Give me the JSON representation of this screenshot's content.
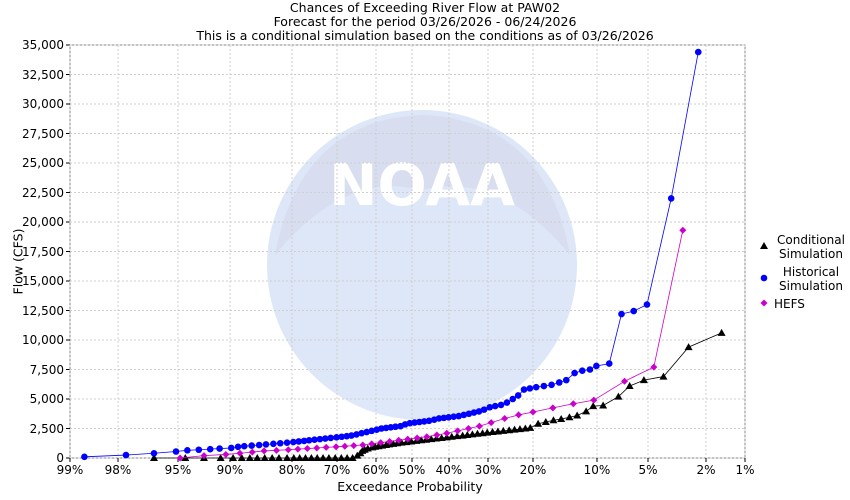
{
  "chart_data": {
    "type": "scatter",
    "title": "Chances of Exceeding River Flow at PAW02",
    "subtitle1": "Forecast for the period 03/26/2026 - 06/24/2026",
    "subtitle2": "This is a conditional simulation based on the conditions as of 03/26/2026",
    "xlabel": "Exceedance Probability",
    "ylabel": "Flow (CFS)",
    "xscale": "normal-probability",
    "xlim": [
      99,
      1
    ],
    "ylim": [
      0,
      35000
    ],
    "yticks": [
      0,
      2500,
      5000,
      7500,
      10000,
      12500,
      15000,
      17500,
      20000,
      22500,
      25000,
      27500,
      30000,
      32500,
      35000
    ],
    "ytick_labels": [
      "0",
      "2,500",
      "5,000",
      "7,500",
      "10,000",
      "12,500",
      "15,000",
      "17,500",
      "20,000",
      "22,500",
      "25,000",
      "27,500",
      "30,000",
      "32,500",
      "35,000"
    ],
    "xticks": [
      99,
      98,
      95,
      90,
      80,
      70,
      60,
      50,
      40,
      30,
      20,
      10,
      5,
      2,
      1
    ],
    "xtick_labels": [
      "99%",
      "98%",
      "95%",
      "90%",
      "80%",
      "70%",
      "60%",
      "50%",
      "40%",
      "30%",
      "20%",
      "10%",
      "5%",
      "2%",
      "1%"
    ],
    "legend": [
      "Conditional Simulation",
      "Historical Simulation",
      "HEFS"
    ],
    "watermark": "NOAA - National Oceanic and Atmospheric Administration - U.S. Department of Commerce",
    "series": [
      {
        "name": "Conditional Simulation",
        "color": "#000000",
        "marker": "triangle",
        "points": [
          [
            96.2,
            0
          ],
          [
            94.3,
            0
          ],
          [
            92.5,
            0
          ],
          [
            90.9,
            0
          ],
          [
            89.5,
            0
          ],
          [
            88.1,
            0
          ],
          [
            86.8,
            0
          ],
          [
            85.6,
            0
          ],
          [
            84.4,
            0
          ],
          [
            83.2,
            0
          ],
          [
            82.1,
            0
          ],
          [
            80.8,
            0
          ],
          [
            79.6,
            0
          ],
          [
            78.3,
            0
          ],
          [
            77.0,
            0
          ],
          [
            75.7,
            0
          ],
          [
            74.4,
            0
          ],
          [
            73.1,
            0
          ],
          [
            71.8,
            0
          ],
          [
            70.4,
            0
          ],
          [
            68.9,
            0
          ],
          [
            67.4,
            0
          ],
          [
            66.0,
            0
          ],
          [
            64.8,
            200
          ],
          [
            64.0,
            400
          ],
          [
            63.5,
            600
          ],
          [
            62.9,
            700
          ],
          [
            62.1,
            800
          ],
          [
            61.0,
            900
          ],
          [
            60.2,
            950
          ],
          [
            59.3,
            1000
          ],
          [
            58.3,
            1050
          ],
          [
            57.2,
            1100
          ],
          [
            56.3,
            1150
          ],
          [
            55.2,
            1200
          ],
          [
            54.1,
            1250
          ],
          [
            52.9,
            1300
          ],
          [
            51.5,
            1350
          ],
          [
            50.2,
            1400
          ],
          [
            48.8,
            1450
          ],
          [
            47.5,
            1500
          ],
          [
            46.2,
            1550
          ],
          [
            44.8,
            1600
          ],
          [
            43.4,
            1650
          ],
          [
            42.0,
            1700
          ],
          [
            40.6,
            1750
          ],
          [
            39.3,
            1800
          ],
          [
            37.9,
            1850
          ],
          [
            36.5,
            1900
          ],
          [
            35.3,
            1950
          ],
          [
            34.0,
            2000
          ],
          [
            32.7,
            2050
          ],
          [
            31.4,
            2100
          ],
          [
            30.2,
            2150
          ],
          [
            29.0,
            2200
          ],
          [
            27.8,
            2250
          ],
          [
            26.6,
            2300
          ],
          [
            25.3,
            2350
          ],
          [
            24.1,
            2400
          ],
          [
            22.9,
            2450
          ],
          [
            21.7,
            2500
          ],
          [
            20.6,
            2550
          ],
          [
            19.2,
            2900
          ],
          [
            18.0,
            3050
          ],
          [
            16.8,
            3200
          ],
          [
            15.6,
            3300
          ],
          [
            14.3,
            3450
          ],
          [
            13.1,
            3600
          ],
          [
            11.7,
            3950
          ],
          [
            10.6,
            4400
          ],
          [
            9.4,
            4450
          ],
          [
            7.9,
            5200
          ],
          [
            6.8,
            6100
          ],
          [
            5.4,
            6600
          ],
          [
            4.2,
            6900
          ],
          [
            2.9,
            9400
          ],
          [
            1.6,
            10600
          ]
        ]
      },
      {
        "name": "Historical Simulation",
        "color": "#0000ff",
        "marker": "circle",
        "points": [
          [
            98.7,
            100
          ],
          [
            97.6,
            250
          ],
          [
            96.2,
            400
          ],
          [
            95.1,
            550
          ],
          [
            94.1,
            650
          ],
          [
            93.0,
            700
          ],
          [
            91.9,
            750
          ],
          [
            91.0,
            800
          ],
          [
            89.8,
            850
          ],
          [
            88.7,
            950
          ],
          [
            87.7,
            1000
          ],
          [
            86.5,
            1050
          ],
          [
            85.3,
            1100
          ],
          [
            84.2,
            1150
          ],
          [
            83.0,
            1200
          ],
          [
            81.9,
            1250
          ],
          [
            80.8,
            1300
          ],
          [
            79.7,
            1350
          ],
          [
            78.5,
            1400
          ],
          [
            77.3,
            1450
          ],
          [
            76.2,
            1500
          ],
          [
            75.0,
            1550
          ],
          [
            73.8,
            1600
          ],
          [
            72.6,
            1650
          ],
          [
            71.4,
            1700
          ],
          [
            70.1,
            1750
          ],
          [
            68.8,
            1800
          ],
          [
            67.5,
            1850
          ],
          [
            66.3,
            1900
          ],
          [
            65.0,
            2000
          ],
          [
            63.7,
            2100
          ],
          [
            62.4,
            2200
          ],
          [
            61.1,
            2300
          ],
          [
            59.8,
            2400
          ],
          [
            58.5,
            2500
          ],
          [
            57.2,
            2550
          ],
          [
            55.9,
            2600
          ],
          [
            54.6,
            2650
          ],
          [
            53.2,
            2700
          ],
          [
            51.9,
            2850
          ],
          [
            50.6,
            2950
          ],
          [
            49.3,
            3000
          ],
          [
            48.0,
            3050
          ],
          [
            46.7,
            3100
          ],
          [
            45.4,
            3150
          ],
          [
            44.0,
            3250
          ],
          [
            42.7,
            3350
          ],
          [
            41.4,
            3400
          ],
          [
            40.1,
            3450
          ],
          [
            38.8,
            3500
          ],
          [
            37.5,
            3550
          ],
          [
            36.2,
            3650
          ],
          [
            34.9,
            3750
          ],
          [
            33.6,
            3850
          ],
          [
            32.3,
            3950
          ],
          [
            31.0,
            4100
          ],
          [
            29.6,
            4300
          ],
          [
            28.4,
            4400
          ],
          [
            27.1,
            4500
          ],
          [
            25.8,
            4700
          ],
          [
            24.5,
            5000
          ],
          [
            23.3,
            5300
          ],
          [
            22.0,
            5800
          ],
          [
            20.7,
            5900
          ],
          [
            19.5,
            6000
          ],
          [
            18.3,
            6100
          ],
          [
            17.1,
            6200
          ],
          [
            15.9,
            6400
          ],
          [
            14.8,
            6600
          ],
          [
            13.5,
            7200
          ],
          [
            12.3,
            7400
          ],
          [
            11.1,
            7500
          ],
          [
            10.1,
            7800
          ],
          [
            8.8,
            8000
          ],
          [
            7.6,
            12200
          ],
          [
            6.4,
            12450
          ],
          [
            5.1,
            13000
          ],
          [
            3.8,
            22000
          ],
          [
            2.4,
            34400
          ]
        ]
      },
      {
        "name": "HEFS",
        "color": "#cc00cc",
        "marker": "diamond",
        "points": [
          [
            94.8,
            0
          ],
          [
            92.5,
            200
          ],
          [
            90.4,
            300
          ],
          [
            88.4,
            400
          ],
          [
            86.4,
            500
          ],
          [
            84.5,
            600
          ],
          [
            82.5,
            650
          ],
          [
            80.6,
            700
          ],
          [
            78.7,
            750
          ],
          [
            76.6,
            800
          ],
          [
            74.5,
            850
          ],
          [
            72.4,
            900
          ],
          [
            70.2,
            950
          ],
          [
            68.0,
            1000
          ],
          [
            65.7,
            1050
          ],
          [
            63.4,
            1100
          ],
          [
            61.1,
            1200
          ],
          [
            58.7,
            1300
          ],
          [
            56.2,
            1400
          ],
          [
            53.7,
            1500
          ],
          [
            51.2,
            1600
          ],
          [
            48.6,
            1700
          ],
          [
            46.0,
            1800
          ],
          [
            43.3,
            1950
          ],
          [
            40.6,
            2100
          ],
          [
            37.8,
            2300
          ],
          [
            35.0,
            2500
          ],
          [
            32.2,
            2700
          ],
          [
            29.3,
            3000
          ],
          [
            26.3,
            3350
          ],
          [
            23.2,
            3650
          ],
          [
            20.0,
            3900
          ],
          [
            16.9,
            4250
          ],
          [
            13.7,
            4600
          ],
          [
            10.5,
            4900
          ],
          [
            7.3,
            6500
          ],
          [
            4.7,
            7700
          ],
          [
            3.2,
            19300
          ]
        ]
      }
    ]
  }
}
